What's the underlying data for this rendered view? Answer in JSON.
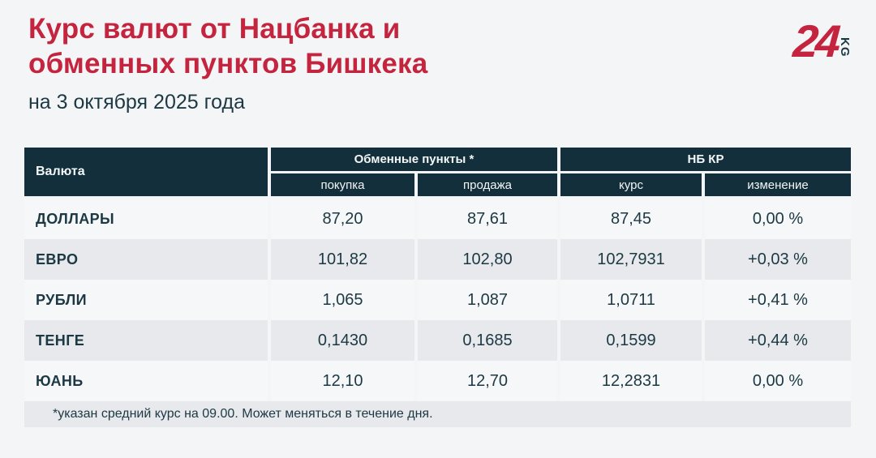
{
  "page": {
    "title_line1": "Курс валют от Нацбанка и",
    "title_line2": "обменных пунктов Бишкека",
    "subtitle": "на 3 октября 2025 года",
    "footnote": "*указан средний курс на 09.00. Может меняться в течение дня."
  },
  "logo": {
    "number": "24",
    "suffix": "KG"
  },
  "colors": {
    "accent_red": "#c5243e",
    "header_bg": "#122f3b",
    "text_dark": "#1c3943",
    "row_light": "#f5f7f9",
    "row_gray": "#e7e9ec",
    "page_bg": "#f3f5f7",
    "header_text": "#f3f6f7"
  },
  "table": {
    "currency_header": "Валюта",
    "groups": [
      {
        "label": "Обменные пункты *",
        "subcolumns": [
          "покупка",
          "продажа"
        ]
      },
      {
        "label": "НБ КР",
        "subcolumns": [
          "курс",
          "изменение"
        ]
      }
    ],
    "rows": [
      {
        "currency": "ДОЛЛАРЫ",
        "buy": "87,20",
        "sell": "87,61",
        "rate": "87,45",
        "change": "0,00 %"
      },
      {
        "currency": "ЕВРО",
        "buy": "101,82",
        "sell": "102,80",
        "rate": "102,7931",
        "change": "+0,03 %"
      },
      {
        "currency": "РУБЛИ",
        "buy": "1,065",
        "sell": "1,087",
        "rate": "1,0711",
        "change": "+0,41 %"
      },
      {
        "currency": "ТЕНГЕ",
        "buy": "0,1430",
        "sell": "0,1685",
        "rate": "0,1599",
        "change": "+0,44 %"
      },
      {
        "currency": "ЮАНЬ",
        "buy": "12,10",
        "sell": "12,70",
        "rate": "12,2831",
        "change": "0,00 %"
      }
    ]
  },
  "chart_data": {
    "type": "table",
    "title": "Курс валют от Нацбанка и обменных пунктов Бишкека",
    "subtitle": "на 3 октября 2025 года",
    "column_groups": [
      {
        "label": "Обменные пункты *",
        "span": [
          "покупка",
          "продажа"
        ]
      },
      {
        "label": "НБ КР",
        "span": [
          "курс",
          "изменение"
        ]
      }
    ],
    "columns": [
      "Валюта",
      "покупка",
      "продажа",
      "курс",
      "изменение"
    ],
    "rows": [
      [
        "ДОЛЛАРЫ",
        "87,20",
        "87,61",
        "87,45",
        "0,00 %"
      ],
      [
        "ЕВРО",
        "101,82",
        "102,80",
        "102,7931",
        "+0,03 %"
      ],
      [
        "РУБЛИ",
        "1,065",
        "1,087",
        "1,0711",
        "+0,41 %"
      ],
      [
        "ТЕНГЕ",
        "0,1430",
        "0,1685",
        "0,1599",
        "+0,44 %"
      ],
      [
        "ЮАНЬ",
        "12,10",
        "12,70",
        "12,2831",
        "0,00 %"
      ]
    ],
    "footnote": "*указан средний курс на 09.00. Может меняться в течение дня."
  }
}
